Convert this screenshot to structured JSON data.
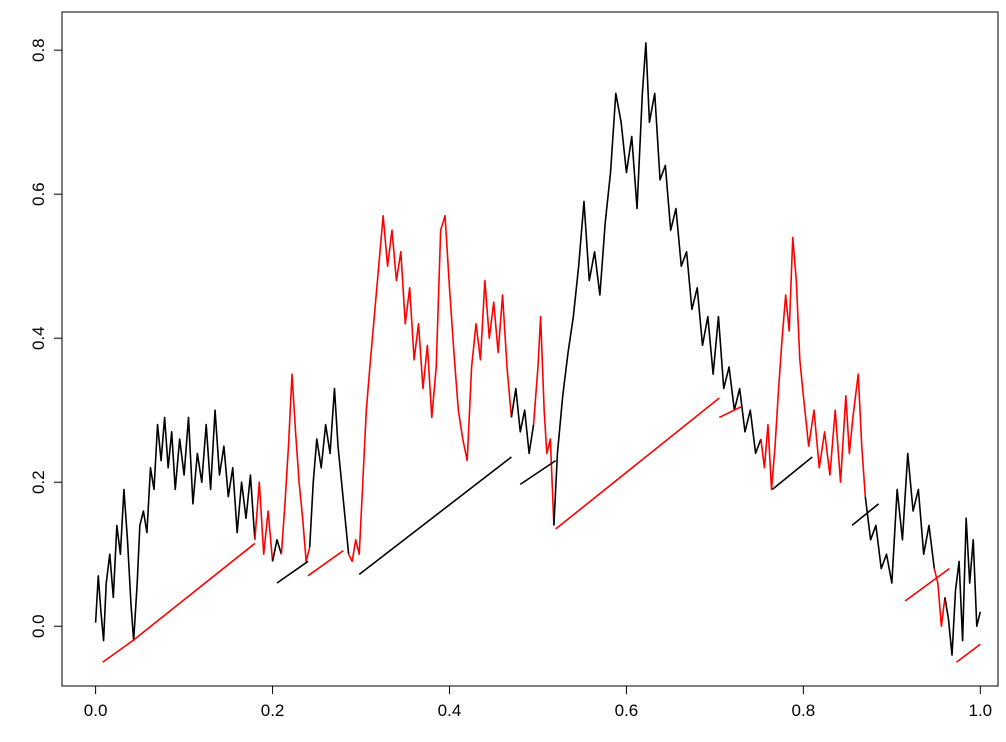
{
  "chart_data": {
    "type": "line",
    "xlim": [
      -0.038,
      1.02
    ],
    "ylim": [
      -0.083,
      0.853
    ],
    "xticks": [
      {
        "value": 0,
        "label": "0.0"
      },
      0.2,
      0.4,
      0.6,
      0.8,
      {
        "value": 1,
        "label": "1.0"
      }
    ],
    "yticks": [
      {
        "value": 0,
        "label": "0.0"
      },
      0.2,
      0.4,
      0.6,
      0.8
    ],
    "grid": false,
    "series": [
      {
        "color": "#000000",
        "x": [
          0,
          0.003,
          0.006,
          0.009,
          0.012,
          0.016,
          0.02,
          0.024,
          0.028,
          0.032,
          0.036,
          0.04,
          0.043,
          0.047,
          0.05,
          0.054,
          0.058,
          0.062,
          0.066,
          0.07,
          0.074,
          0.078,
          0.082,
          0.086,
          0.09,
          0.095,
          0.1,
          0.105,
          0.11,
          0.115,
          0.12,
          0.125,
          0.13,
          0.135,
          0.14,
          0.145,
          0.15,
          0.155,
          0.16,
          0.165,
          0.17,
          0.175,
          0.18
        ],
        "values": [
          0.005,
          0.07,
          0.02,
          -0.02,
          0.06,
          0.1,
          0.04,
          0.14,
          0.1,
          0.19,
          0.12,
          0.03,
          -0.02,
          0.06,
          0.14,
          0.16,
          0.13,
          0.22,
          0.19,
          0.28,
          0.23,
          0.29,
          0.22,
          0.27,
          0.19,
          0.26,
          0.21,
          0.29,
          0.17,
          0.24,
          0.2,
          0.28,
          0.19,
          0.3,
          0.21,
          0.25,
          0.18,
          0.22,
          0.13,
          0.2,
          0.15,
          0.21,
          0.12
        ]
      },
      {
        "color": "#ff0000",
        "x": [
          0.18,
          0.185,
          0.19,
          0.195,
          0.2
        ],
        "values": [
          0.12,
          0.2,
          0.1,
          0.16,
          0.09
        ]
      },
      {
        "color": "#000000",
        "x": [
          0.2,
          0.205,
          0.21
        ],
        "values": [
          0.09,
          0.12,
          0.1
        ]
      },
      {
        "color": "#ff0000",
        "x": [
          0.21,
          0.214,
          0.218,
          0.222,
          0.226,
          0.23,
          0.234,
          0.238,
          0.242
        ],
        "values": [
          0.1,
          0.17,
          0.25,
          0.35,
          0.27,
          0.2,
          0.15,
          0.09,
          0.11
        ]
      },
      {
        "color": "#000000",
        "x": [
          0.242,
          0.246,
          0.25,
          0.255,
          0.26,
          0.265,
          0.27,
          0.274,
          0.278,
          0.282,
          0.286
        ],
        "values": [
          0.11,
          0.2,
          0.26,
          0.22,
          0.28,
          0.24,
          0.33,
          0.25,
          0.2,
          0.15,
          0.1
        ]
      },
      {
        "color": "#ff0000",
        "x": [
          0.286,
          0.29,
          0.294,
          0.298,
          0.302,
          0.306,
          0.31,
          0.315,
          0.32,
          0.325,
          0.33,
          0.335,
          0.34,
          0.345,
          0.35,
          0.355,
          0.36,
          0.365,
          0.37,
          0.375,
          0.38,
          0.385,
          0.39,
          0.395,
          0.4,
          0.405,
          0.41,
          0.415,
          0.42,
          0.425,
          0.43,
          0.435,
          0.44,
          0.445,
          0.45,
          0.455,
          0.46,
          0.465,
          0.47
        ],
        "values": [
          0.1,
          0.09,
          0.12,
          0.1,
          0.2,
          0.3,
          0.36,
          0.43,
          0.5,
          0.57,
          0.5,
          0.55,
          0.48,
          0.52,
          0.42,
          0.47,
          0.37,
          0.42,
          0.33,
          0.39,
          0.29,
          0.36,
          0.55,
          0.57,
          0.47,
          0.38,
          0.3,
          0.26,
          0.23,
          0.36,
          0.42,
          0.37,
          0.48,
          0.4,
          0.45,
          0.38,
          0.46,
          0.36,
          0.29
        ]
      },
      {
        "color": "#000000",
        "x": [
          0.47,
          0.475,
          0.48,
          0.485,
          0.49,
          0.495
        ],
        "values": [
          0.29,
          0.33,
          0.27,
          0.3,
          0.24,
          0.28
        ]
      },
      {
        "color": "#ff0000",
        "x": [
          0.495,
          0.5,
          0.503,
          0.507,
          0.51,
          0.514,
          0.518
        ],
        "values": [
          0.28,
          0.36,
          0.43,
          0.3,
          0.24,
          0.26,
          0.14
        ]
      },
      {
        "color": "#000000",
        "x": [
          0.518,
          0.522,
          0.528,
          0.534,
          0.54,
          0.546,
          0.552,
          0.558,
          0.564,
          0.57,
          0.576,
          0.582,
          0.588,
          0.594,
          0.6,
          0.606,
          0.612,
          0.618,
          0.622,
          0.626,
          0.632,
          0.638,
          0.644,
          0.65,
          0.656,
          0.662,
          0.668,
          0.674,
          0.68,
          0.686,
          0.692,
          0.698,
          0.704,
          0.71,
          0.716,
          0.722,
          0.728,
          0.734,
          0.74,
          0.746,
          0.752
        ],
        "values": [
          0.14,
          0.24,
          0.32,
          0.38,
          0.43,
          0.5,
          0.59,
          0.48,
          0.52,
          0.46,
          0.56,
          0.63,
          0.74,
          0.7,
          0.63,
          0.68,
          0.58,
          0.74,
          0.81,
          0.7,
          0.74,
          0.62,
          0.64,
          0.55,
          0.58,
          0.5,
          0.52,
          0.44,
          0.47,
          0.39,
          0.43,
          0.35,
          0.43,
          0.33,
          0.36,
          0.3,
          0.33,
          0.27,
          0.3,
          0.24,
          0.26
        ]
      },
      {
        "color": "#ff0000",
        "x": [
          0.752,
          0.756,
          0.76,
          0.764,
          0.768,
          0.772,
          0.776,
          0.78,
          0.784,
          0.788,
          0.792,
          0.796,
          0.8,
          0.806,
          0.812,
          0.818,
          0.824,
          0.83,
          0.836,
          0.842,
          0.848,
          0.852,
          0.856,
          0.862,
          0.866,
          0.87
        ],
        "values": [
          0.26,
          0.22,
          0.28,
          0.19,
          0.25,
          0.33,
          0.4,
          0.46,
          0.41,
          0.54,
          0.48,
          0.37,
          0.32,
          0.25,
          0.3,
          0.22,
          0.27,
          0.21,
          0.3,
          0.2,
          0.32,
          0.24,
          0.29,
          0.35,
          0.25,
          0.18
        ]
      },
      {
        "color": "#000000",
        "x": [
          0.87,
          0.876,
          0.882,
          0.888,
          0.894,
          0.9,
          0.906,
          0.912,
          0.918,
          0.924,
          0.93,
          0.936,
          0.942,
          0.948
        ],
        "values": [
          0.18,
          0.12,
          0.14,
          0.08,
          0.1,
          0.06,
          0.19,
          0.12,
          0.24,
          0.16,
          0.19,
          0.1,
          0.14,
          0.08
        ]
      },
      {
        "color": "#ff0000",
        "x": [
          0.948,
          0.952,
          0.956,
          0.96
        ],
        "values": [
          0.08,
          0.06,
          0.0,
          0.04
        ]
      },
      {
        "color": "#000000",
        "x": [
          0.96,
          0.964,
          0.968,
          0.972,
          0.976,
          0.98,
          0.984,
          0.988,
          0.992,
          0.996,
          1.0
        ],
        "values": [
          0.04,
          0.01,
          -0.04,
          0.05,
          0.09,
          -0.02,
          0.15,
          0.06,
          0.12,
          0.0,
          0.02
        ]
      },
      {
        "color": "#ff0000",
        "x": [
          0.008,
          0.042,
          0.18
        ],
        "values": [
          -0.05,
          -0.02,
          0.115
        ]
      },
      {
        "color": "#000000",
        "x": [
          0.205,
          0.24
        ],
        "values": [
          0.06,
          0.09
        ]
      },
      {
        "color": "#ff0000",
        "x": [
          0.24,
          0.28
        ],
        "values": [
          0.07,
          0.105
        ]
      },
      {
        "color": "#000000",
        "x": [
          0.298,
          0.47
        ],
        "values": [
          0.072,
          0.235
        ]
      },
      {
        "color": "#000000",
        "x": [
          0.48,
          0.52
        ],
        "values": [
          0.197,
          0.23
        ]
      },
      {
        "color": "#ff0000",
        "x": [
          0.52,
          0.705
        ],
        "values": [
          0.135,
          0.317
        ]
      },
      {
        "color": "#ff0000",
        "x": [
          0.705,
          0.73
        ],
        "values": [
          0.29,
          0.305
        ]
      },
      {
        "color": "#000000",
        "x": [
          0.765,
          0.81
        ],
        "values": [
          0.19,
          0.235
        ]
      },
      {
        "color": "#000000",
        "x": [
          0.855,
          0.885
        ],
        "values": [
          0.14,
          0.17
        ]
      },
      {
        "color": "#ff0000",
        "x": [
          0.915,
          0.965
        ],
        "values": [
          0.035,
          0.08
        ]
      },
      {
        "color": "#ff0000",
        "x": [
          0.973,
          1.0
        ],
        "values": [
          -0.05,
          -0.025
        ]
      }
    ]
  }
}
